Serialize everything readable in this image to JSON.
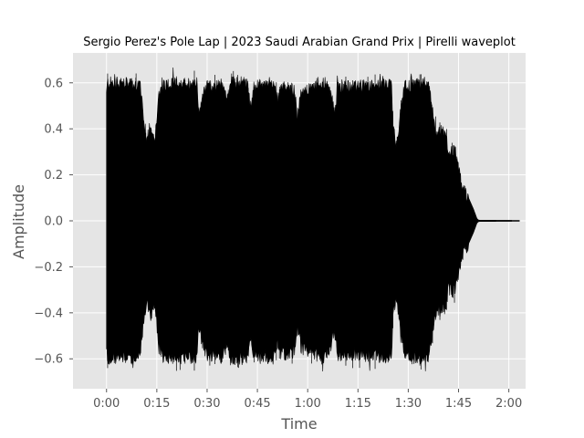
{
  "chart_data": {
    "type": "waveform",
    "title": "Sergio Perez's Pole Lap | 2023 Saudi Arabian Grand Prix | Pirelli waveplot",
    "xlabel": "Time",
    "ylabel": "Amplitude",
    "xlim_seconds": [
      -10,
      125
    ],
    "ylim": [
      -0.73,
      0.73
    ],
    "x_ticks": [
      {
        "value": 0,
        "label": "0:00"
      },
      {
        "value": 15,
        "label": "0:15"
      },
      {
        "value": 30,
        "label": "0:30"
      },
      {
        "value": 45,
        "label": "0:45"
      },
      {
        "value": 60,
        "label": "1:00"
      },
      {
        "value": 75,
        "label": "1:15"
      },
      {
        "value": 90,
        "label": "1:30"
      },
      {
        "value": 105,
        "label": "1:45"
      },
      {
        "value": 120,
        "label": "2:00"
      }
    ],
    "y_ticks": [
      {
        "value": 0.6,
        "label": "0.6"
      },
      {
        "value": 0.4,
        "label": "0.4"
      },
      {
        "value": 0.2,
        "label": "0.2"
      },
      {
        "value": 0.0,
        "label": "0.0"
      },
      {
        "value": -0.2,
        "label": "−0.2"
      },
      {
        "value": -0.4,
        "label": "−0.4"
      },
      {
        "value": -0.6,
        "label": "−0.6"
      }
    ],
    "duration_seconds": 123.2,
    "envelope": [
      [
        0.0,
        0.55
      ],
      [
        0.3,
        0.6
      ],
      [
        10.0,
        0.59
      ],
      [
        11.0,
        0.45
      ],
      [
        12.0,
        0.35
      ],
      [
        13.0,
        0.42
      ],
      [
        14.5,
        0.35
      ],
      [
        15.5,
        0.55
      ],
      [
        17.0,
        0.59
      ],
      [
        27.0,
        0.6
      ],
      [
        27.5,
        0.46
      ],
      [
        28.5,
        0.52
      ],
      [
        29.5,
        0.58
      ],
      [
        35.0,
        0.59
      ],
      [
        36.0,
        0.52
      ],
      [
        37.0,
        0.6
      ],
      [
        42.0,
        0.6
      ],
      [
        43.0,
        0.5
      ],
      [
        44.0,
        0.58
      ],
      [
        50.0,
        0.6
      ],
      [
        51.0,
        0.52
      ],
      [
        52.0,
        0.58
      ],
      [
        56.0,
        0.57
      ],
      [
        57.0,
        0.45
      ],
      [
        58.0,
        0.55
      ],
      [
        65.0,
        0.6
      ],
      [
        67.0,
        0.55
      ],
      [
        68.0,
        0.47
      ],
      [
        69.0,
        0.58
      ],
      [
        85.0,
        0.59
      ],
      [
        85.5,
        0.4
      ],
      [
        86.5,
        0.32
      ],
      [
        87.5,
        0.45
      ],
      [
        89.0,
        0.58
      ],
      [
        96.0,
        0.6
      ],
      [
        97.0,
        0.5
      ],
      [
        98.0,
        0.4
      ],
      [
        101.0,
        0.38
      ],
      [
        102.0,
        0.3
      ],
      [
        104.0,
        0.3
      ],
      [
        106.0,
        0.15
      ],
      [
        108.0,
        0.1
      ],
      [
        109.5,
        0.05
      ],
      [
        110.5,
        0.01
      ],
      [
        111.0,
        0.003
      ],
      [
        123.2,
        0.002
      ]
    ],
    "color": "#000000",
    "background": "#e5e5e5",
    "grid": true,
    "grid_color": "#ffffff"
  }
}
